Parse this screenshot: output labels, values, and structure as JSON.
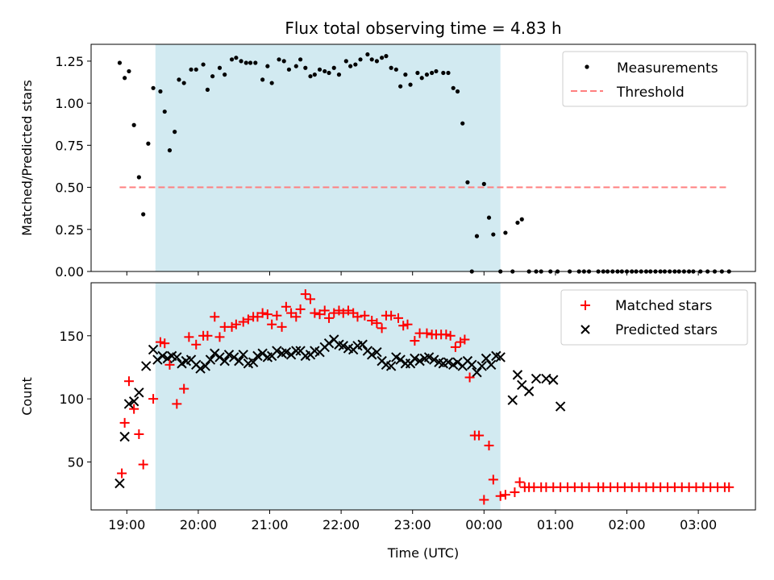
{
  "figure": {
    "title": "Flux total observing time = 4.83 h",
    "xlabel": "Time (UTC)",
    "x_ticks": [
      "19:00",
      "20:00",
      "21:00",
      "22:00",
      "23:00",
      "00:00",
      "01:00",
      "02:00",
      "03:00"
    ]
  },
  "colors": {
    "shade": "#add8e6",
    "measurement": "#000000",
    "threshold": "#ff7f7f",
    "matched": "#ff0000",
    "predicted": "#000000"
  },
  "chart_data": [
    {
      "type": "scatter",
      "name": "ratio",
      "ylabel": "Matched/Predicted stars",
      "xlim_hours": [
        18.5,
        27.8
      ],
      "ylim": [
        0,
        1.35
      ],
      "y_ticks": [
        0.0,
        0.25,
        0.5,
        0.75,
        1.0,
        1.25
      ],
      "y_tick_labels": [
        "0.00",
        "0.25",
        "0.50",
        "0.75",
        "1.00",
        "1.25"
      ],
      "shaded_interval_hours": [
        19.4,
        24.23
      ],
      "legend": {
        "placement": "upper right",
        "entries": [
          "Measurements",
          "Threshold"
        ]
      },
      "threshold": {
        "value": 0.5,
        "x_range_hours": [
          18.9,
          27.43
        ]
      },
      "series": [
        {
          "name": "Measurements",
          "x_hours": [
            18.9,
            18.97,
            19.03,
            19.1,
            19.17,
            19.23,
            19.3,
            19.37,
            19.47,
            19.53,
            19.6,
            19.67,
            19.73,
            19.8,
            19.9,
            19.97,
            20.07,
            20.13,
            20.2,
            20.3,
            20.37,
            20.47,
            20.53,
            20.6,
            20.67,
            20.73,
            20.8,
            20.9,
            20.97,
            21.03,
            21.13,
            21.2,
            21.27,
            21.37,
            21.43,
            21.5,
            21.57,
            21.63,
            21.7,
            21.77,
            21.83,
            21.9,
            21.97,
            22.07,
            22.13,
            22.2,
            22.27,
            22.37,
            22.43,
            22.5,
            22.57,
            22.63,
            22.7,
            22.77,
            22.83,
            22.9,
            22.97,
            23.07,
            23.13,
            23.2,
            23.27,
            23.33,
            23.43,
            23.5,
            23.57,
            23.63,
            23.7,
            23.77,
            23.83,
            23.9,
            24.0,
            24.07,
            24.13,
            24.23,
            24.3,
            24.4,
            24.47,
            24.53,
            24.63,
            24.73,
            24.8,
            24.93,
            25.03,
            25.2,
            25.33,
            25.4,
            25.47,
            25.6,
            25.67,
            25.73,
            25.8,
            25.87,
            25.93,
            26.0,
            26.07,
            26.13,
            26.2,
            26.27,
            26.33,
            26.4,
            26.47,
            26.53,
            26.6,
            26.67,
            26.73,
            26.8,
            26.87,
            26.93,
            27.03,
            27.13,
            27.23,
            27.33,
            27.43
          ],
          "y": [
            1.24,
            1.15,
            1.19,
            0.87,
            0.56,
            0.34,
            0.76,
            1.09,
            1.07,
            0.95,
            0.72,
            0.83,
            1.14,
            1.12,
            1.2,
            1.2,
            1.23,
            1.08,
            1.16,
            1.21,
            1.17,
            1.26,
            1.27,
            1.25,
            1.24,
            1.24,
            1.24,
            1.14,
            1.22,
            1.12,
            1.26,
            1.25,
            1.2,
            1.22,
            1.26,
            1.21,
            1.16,
            1.17,
            1.2,
            1.19,
            1.18,
            1.21,
            1.17,
            1.25,
            1.22,
            1.23,
            1.26,
            1.29,
            1.26,
            1.25,
            1.27,
            1.28,
            1.21,
            1.2,
            1.1,
            1.17,
            1.11,
            1.18,
            1.15,
            1.17,
            1.18,
            1.19,
            1.18,
            1.18,
            1.09,
            1.07,
            0.88,
            0.53,
            0.0,
            0.21,
            0.52,
            0.32,
            0.22,
            0.0,
            0.23,
            0.0,
            0.29,
            0.31,
            0.0,
            0.0,
            0.0,
            0.0,
            0.0,
            0.0,
            0.0,
            0.0,
            0.0,
            0.0,
            0.0,
            0.0,
            0.0,
            0.0,
            0.0,
            0.0,
            0.0,
            0.0,
            0.0,
            0.0,
            0.0,
            0.0,
            0.0,
            0.0,
            0.0,
            0.0,
            0.0,
            0.0,
            0.0,
            0.0,
            0.0,
            0.0,
            0.0,
            0.0,
            0.0
          ]
        }
      ]
    },
    {
      "type": "scatter",
      "name": "counts",
      "ylabel": "Count",
      "xlim_hours": [
        18.5,
        27.8
      ],
      "ylim": [
        12,
        192
      ],
      "y_ticks": [
        50,
        100,
        150
      ],
      "y_tick_labels": [
        "50",
        "100",
        "150"
      ],
      "shaded_interval_hours": [
        19.4,
        24.23
      ],
      "legend": {
        "placement": "upper right",
        "entries": [
          "Matched stars",
          "Predicted stars"
        ]
      },
      "series": [
        {
          "name": "Matched stars",
          "x_hours": [
            18.93,
            18.97,
            19.03,
            19.1,
            19.17,
            19.23,
            19.37,
            19.47,
            19.53,
            19.6,
            19.7,
            19.8,
            19.87,
            19.97,
            20.07,
            20.13,
            20.23,
            20.3,
            20.37,
            20.47,
            20.53,
            20.63,
            20.7,
            20.77,
            20.83,
            20.9,
            20.97,
            21.03,
            21.1,
            21.17,
            21.23,
            21.3,
            21.37,
            21.43,
            21.5,
            21.57,
            21.63,
            21.7,
            21.77,
            21.83,
            21.9,
            21.97,
            22.03,
            22.1,
            22.17,
            22.23,
            22.33,
            22.43,
            22.5,
            22.57,
            22.63,
            22.7,
            22.8,
            22.87,
            22.93,
            23.03,
            23.1,
            23.2,
            23.27,
            23.33,
            23.4,
            23.47,
            23.53,
            23.6,
            23.67,
            23.73,
            23.8,
            23.87,
            23.93,
            24.0,
            24.07,
            24.13,
            24.23,
            24.3,
            24.43,
            24.5,
            24.57,
            24.63,
            24.7,
            24.8,
            24.87,
            24.97,
            25.07,
            25.17,
            25.27,
            25.37,
            25.47,
            25.6,
            25.67,
            25.77,
            25.87,
            25.97,
            26.07,
            26.17,
            26.27,
            26.37,
            26.47,
            26.57,
            26.67,
            26.77,
            26.87,
            26.97,
            27.07,
            27.17,
            27.27,
            27.37,
            27.43
          ],
          "y": [
            41,
            81,
            114,
            92,
            72,
            48,
            100,
            145,
            144,
            127,
            96,
            108,
            149,
            143,
            150,
            150,
            165,
            149,
            157,
            157,
            159,
            161,
            163,
            165,
            165,
            168,
            167,
            159,
            166,
            157,
            173,
            168,
            165,
            171,
            183,
            179,
            168,
            167,
            170,
            164,
            168,
            170,
            168,
            170,
            168,
            165,
            166,
            162,
            160,
            156,
            166,
            166,
            164,
            158,
            159,
            146,
            152,
            152,
            151,
            151,
            151,
            151,
            150,
            141,
            145,
            147,
            117,
            71,
            71,
            20,
            63,
            36,
            23,
            24,
            26,
            34,
            30,
            30,
            30,
            30,
            30,
            30,
            30,
            30,
            30,
            30,
            30,
            30,
            30,
            30,
            30,
            30,
            30,
            30,
            30,
            30,
            30,
            30,
            30,
            30,
            30,
            30,
            30,
            30,
            30,
            30,
            30
          ]
        },
        {
          "name": "Predicted stars",
          "x_hours": [
            18.9,
            18.97,
            19.03,
            19.1,
            19.17,
            19.27,
            19.37,
            19.43,
            19.5,
            19.57,
            19.63,
            19.7,
            19.77,
            19.83,
            19.9,
            19.97,
            20.03,
            20.1,
            20.17,
            20.23,
            20.3,
            20.37,
            20.43,
            20.5,
            20.57,
            20.63,
            20.7,
            20.77,
            20.83,
            20.9,
            20.97,
            21.03,
            21.1,
            21.17,
            21.23,
            21.3,
            21.37,
            21.43,
            21.5,
            21.57,
            21.63,
            21.7,
            21.77,
            21.83,
            21.9,
            21.97,
            22.03,
            22.1,
            22.17,
            22.23,
            22.3,
            22.37,
            22.43,
            22.5,
            22.57,
            22.63,
            22.7,
            22.77,
            22.83,
            22.9,
            22.97,
            23.03,
            23.1,
            23.17,
            23.23,
            23.3,
            23.37,
            23.43,
            23.5,
            23.57,
            23.63,
            23.7,
            23.77,
            23.83,
            23.9,
            23.97,
            24.03,
            24.1,
            24.17,
            24.23,
            24.4,
            24.47,
            24.53,
            24.63,
            24.73,
            24.87,
            24.97,
            25.07
          ],
          "y": [
            33,
            70,
            96,
            98,
            105,
            126,
            139,
            131,
            134,
            132,
            134,
            133,
            128,
            130,
            131,
            127,
            124,
            126,
            131,
            136,
            133,
            130,
            135,
            133,
            130,
            135,
            128,
            129,
            134,
            136,
            133,
            134,
            138,
            136,
            137,
            135,
            138,
            138,
            134,
            135,
            138,
            137,
            141,
            144,
            147,
            143,
            142,
            140,
            139,
            142,
            143,
            138,
            135,
            137,
            130,
            127,
            126,
            133,
            131,
            128,
            128,
            132,
            130,
            132,
            133,
            131,
            129,
            128,
            129,
            127,
            129,
            126,
            130,
            127,
            121,
            126,
            132,
            127,
            134,
            133,
            99,
            119,
            111,
            106,
            116,
            116,
            115,
            94
          ]
        }
      ]
    }
  ]
}
